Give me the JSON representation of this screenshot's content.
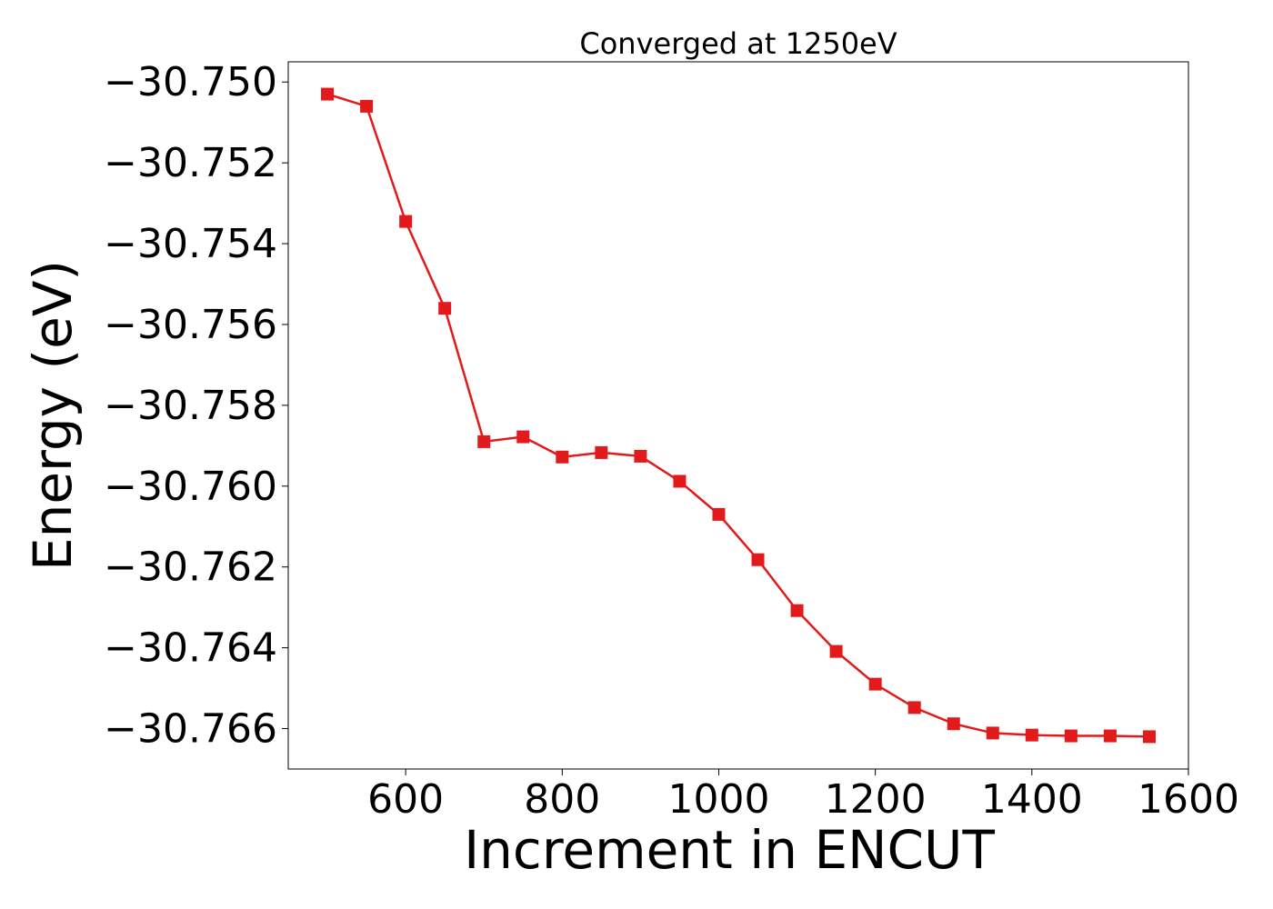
{
  "chart_data": {
    "type": "line",
    "title": "Converged at 1250eV",
    "xlabel": "Increment in ENCUT",
    "ylabel": "Energy (eV)",
    "xlim": [
      450,
      1600
    ],
    "ylim": [
      -30.767,
      -30.7495
    ],
    "x_ticks": [
      600,
      800,
      1000,
      1200,
      1400,
      1600
    ],
    "y_ticks": [
      -30.75,
      -30.752,
      -30.754,
      -30.756,
      -30.758,
      -30.76,
      -30.762,
      -30.764,
      -30.766
    ],
    "x_tick_labels": [
      "600",
      "800",
      "1000",
      "1200",
      "1400",
      "1600"
    ],
    "y_tick_labels": [
      "−30.750",
      "−30.752",
      "−30.754",
      "−30.756",
      "−30.758",
      "−30.760",
      "−30.762",
      "−30.764",
      "−30.766"
    ],
    "grid": false,
    "legend": "none",
    "series": [
      {
        "color": "#e31a1c",
        "marker": "square",
        "x": [
          500,
          550,
          600,
          650,
          700,
          750,
          800,
          850,
          900,
          950,
          1000,
          1050,
          1100,
          1150,
          1200,
          1250,
          1300,
          1350,
          1400,
          1450,
          1500,
          1550
        ],
        "y": [
          -30.7503,
          -30.7506,
          -30.75345,
          -30.7556,
          -30.7589,
          -30.75878,
          -30.75928,
          -30.75917,
          -30.75926,
          -30.75988,
          -30.7607,
          -30.76182,
          -30.76308,
          -30.76409,
          -30.7649,
          -30.76548,
          -30.76588,
          -30.76611,
          -30.76616,
          -30.76618,
          -30.76618,
          -30.7662
        ]
      }
    ]
  }
}
